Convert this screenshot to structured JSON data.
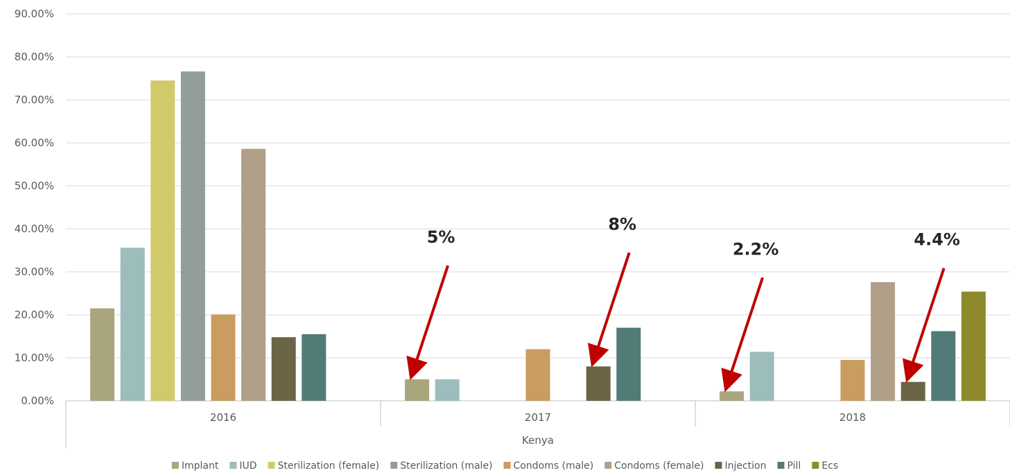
{
  "chart_data": {
    "type": "bar",
    "group_label": "Kenya",
    "categories": [
      "2016",
      "2017",
      "2018"
    ],
    "ylim": [
      0,
      0.9
    ],
    "y_ticks": [
      "0.00%",
      "10.00%",
      "20.00%",
      "30.00%",
      "40.00%",
      "50.00%",
      "60.00%",
      "70.00%",
      "80.00%",
      "90.00%"
    ],
    "grid": true,
    "legend_position": "bottom",
    "series": [
      {
        "name": "Implant",
        "color": "#a9a67e",
        "values": [
          0.215,
          0.05,
          0.022
        ]
      },
      {
        "name": "IUD",
        "color": "#9dbdbd",
        "values": [
          0.356,
          0.05,
          0.114
        ]
      },
      {
        "name": "Sterilization (female)",
        "color": "#d1ca6b",
        "values": [
          0.745,
          null,
          null
        ]
      },
      {
        "name": "Sterilization (male)",
        "color": "#929f98",
        "values": [
          0.766,
          null,
          null
        ]
      },
      {
        "name": "Condoms (male)",
        "color": "#c99d5f",
        "values": [
          0.201,
          0.12,
          0.095
        ]
      },
      {
        "name": "Condoms (female)",
        "color": "#b09f89",
        "values": [
          0.586,
          null,
          0.276
        ]
      },
      {
        "name": "Injection",
        "color": "#6b6545",
        "values": [
          0.148,
          0.08,
          0.044
        ]
      },
      {
        "name": "Pill",
        "color": "#517b77",
        "values": [
          0.155,
          0.17,
          0.162
        ]
      },
      {
        "name": "Ecs",
        "color": "#8c8a2c",
        "values": [
          null,
          null,
          0.254
        ]
      }
    ],
    "annotations": [
      {
        "text": "5%",
        "category": "2017",
        "series": "Implant",
        "arrow_color": "#c00000"
      },
      {
        "text": "8%",
        "category": "2017",
        "series": "Injection",
        "arrow_color": "#c00000"
      },
      {
        "text": "2.2%",
        "category": "2018",
        "series": "Implant",
        "arrow_color": "#c00000"
      },
      {
        "text": "4.4%",
        "category": "2018",
        "series": "Injection",
        "arrow_color": "#c00000"
      }
    ]
  }
}
